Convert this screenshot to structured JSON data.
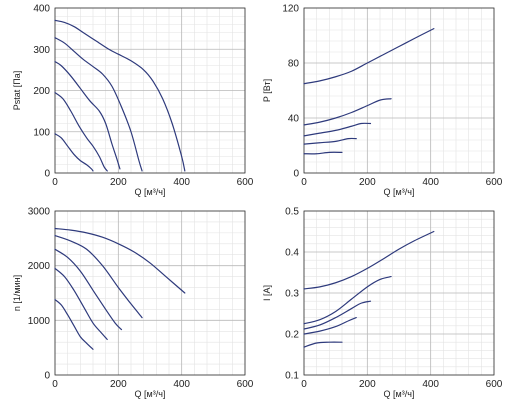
{
  "colors": {
    "line": "#2e3a7c",
    "grid_major": "#b8b8b8",
    "grid_minor": "#e3e3e3",
    "axis": "#333333"
  },
  "chart_data": [
    {
      "id": "pstat",
      "type": "line",
      "title": "",
      "xlabel": "Q [м³/ч]",
      "ylabel": "Pstat [Па]",
      "xlim": [
        0,
        600
      ],
      "ylim": [
        0,
        400
      ],
      "xticks": [
        0,
        200,
        400,
        600
      ],
      "yticks": [
        0,
        100,
        200,
        300,
        400
      ],
      "grid": true,
      "series": [
        {
          "x": [
            0,
            30,
            60,
            90,
            130,
            170,
            200,
            240,
            280,
            310,
            340,
            370,
            400,
            410
          ],
          "y": [
            370,
            365,
            355,
            340,
            320,
            300,
            288,
            272,
            250,
            222,
            180,
            120,
            40,
            5
          ]
        },
        {
          "x": [
            0,
            30,
            60,
            90,
            120,
            150,
            180,
            210,
            240,
            265,
            275
          ],
          "y": [
            328,
            315,
            295,
            275,
            258,
            240,
            210,
            160,
            100,
            30,
            5
          ]
        },
        {
          "x": [
            0,
            20,
            50,
            80,
            110,
            140,
            160,
            180,
            195,
            205
          ],
          "y": [
            270,
            260,
            235,
            205,
            175,
            150,
            120,
            70,
            35,
            10
          ]
        },
        {
          "x": [
            0,
            25,
            50,
            75,
            100,
            120,
            140,
            155,
            165
          ],
          "y": [
            195,
            180,
            150,
            115,
            85,
            65,
            40,
            15,
            5
          ]
        },
        {
          "x": [
            0,
            20,
            40,
            60,
            80,
            100,
            115,
            120
          ],
          "y": [
            95,
            85,
            65,
            45,
            30,
            20,
            10,
            5
          ]
        }
      ]
    },
    {
      "id": "power",
      "type": "line",
      "title": "",
      "xlabel": "Q [м³/ч]",
      "ylabel": "P [Вт]",
      "xlim": [
        0,
        600
      ],
      "ylim": [
        0,
        120
      ],
      "xticks": [
        0,
        200,
        400,
        600
      ],
      "yticks": [
        0,
        40,
        80,
        120
      ],
      "grid": true,
      "series": [
        {
          "x": [
            0,
            50,
            100,
            150,
            200,
            250,
            300,
            350,
            410
          ],
          "y": [
            65,
            67,
            70,
            74,
            80,
            86,
            92,
            98,
            105
          ]
        },
        {
          "x": [
            0,
            50,
            100,
            150,
            200,
            240,
            275
          ],
          "y": [
            35,
            37,
            40,
            44,
            49,
            53,
            54
          ]
        },
        {
          "x": [
            0,
            50,
            100,
            150,
            180,
            210
          ],
          "y": [
            27,
            29,
            31,
            34,
            36,
            36
          ]
        },
        {
          "x": [
            0,
            50,
            100,
            140,
            165
          ],
          "y": [
            21,
            22,
            23,
            25,
            25
          ]
        },
        {
          "x": [
            0,
            40,
            80,
            120
          ],
          "y": [
            14,
            14,
            15,
            15
          ]
        }
      ]
    },
    {
      "id": "speed",
      "type": "line",
      "title": "",
      "xlabel": "Q [м³/ч]",
      "ylabel": "n [1/мин]",
      "xlim": [
        0,
        600
      ],
      "ylim": [
        0,
        3000
      ],
      "xticks": [
        0,
        200,
        400,
        600
      ],
      "yticks": [
        0,
        1000,
        2000,
        3000
      ],
      "grid": true,
      "series": [
        {
          "x": [
            0,
            50,
            100,
            150,
            200,
            250,
            300,
            350,
            410
          ],
          "y": [
            2680,
            2650,
            2600,
            2520,
            2400,
            2250,
            2050,
            1800,
            1500
          ]
        },
        {
          "x": [
            0,
            50,
            100,
            150,
            200,
            240,
            275
          ],
          "y": [
            2550,
            2450,
            2300,
            2000,
            1600,
            1300,
            1050
          ]
        },
        {
          "x": [
            0,
            40,
            80,
            120,
            160,
            190,
            210
          ],
          "y": [
            2300,
            2150,
            1900,
            1550,
            1200,
            950,
            830
          ]
        },
        {
          "x": [
            0,
            30,
            60,
            90,
            120,
            145,
            165
          ],
          "y": [
            1950,
            1800,
            1550,
            1250,
            950,
            780,
            650
          ]
        },
        {
          "x": [
            0,
            20,
            40,
            60,
            80,
            100,
            120
          ],
          "y": [
            1380,
            1280,
            1100,
            900,
            700,
            580,
            470
          ]
        }
      ]
    },
    {
      "id": "current",
      "type": "line",
      "title": "",
      "xlabel": "Q [м³/ч]",
      "ylabel": "I [A]",
      "xlim": [
        0,
        600
      ],
      "ylim": [
        0.1,
        0.5
      ],
      "xticks": [
        0,
        200,
        400,
        600
      ],
      "yticks": [
        0.1,
        0.2,
        0.3,
        0.4,
        0.5
      ],
      "grid": true,
      "series": [
        {
          "x": [
            0,
            50,
            100,
            150,
            200,
            250,
            300,
            350,
            410
          ],
          "y": [
            0.31,
            0.315,
            0.325,
            0.34,
            0.36,
            0.383,
            0.407,
            0.428,
            0.45
          ]
        },
        {
          "x": [
            0,
            50,
            100,
            150,
            200,
            240,
            275
          ],
          "y": [
            0.225,
            0.235,
            0.255,
            0.285,
            0.315,
            0.333,
            0.34
          ]
        },
        {
          "x": [
            0,
            50,
            100,
            150,
            180,
            210
          ],
          "y": [
            0.212,
            0.222,
            0.24,
            0.262,
            0.275,
            0.28
          ]
        },
        {
          "x": [
            0,
            50,
            100,
            140,
            165
          ],
          "y": [
            0.2,
            0.207,
            0.218,
            0.232,
            0.24
          ]
        },
        {
          "x": [
            0,
            40,
            80,
            120
          ],
          "y": [
            0.168,
            0.178,
            0.18,
            0.18
          ]
        }
      ]
    }
  ]
}
